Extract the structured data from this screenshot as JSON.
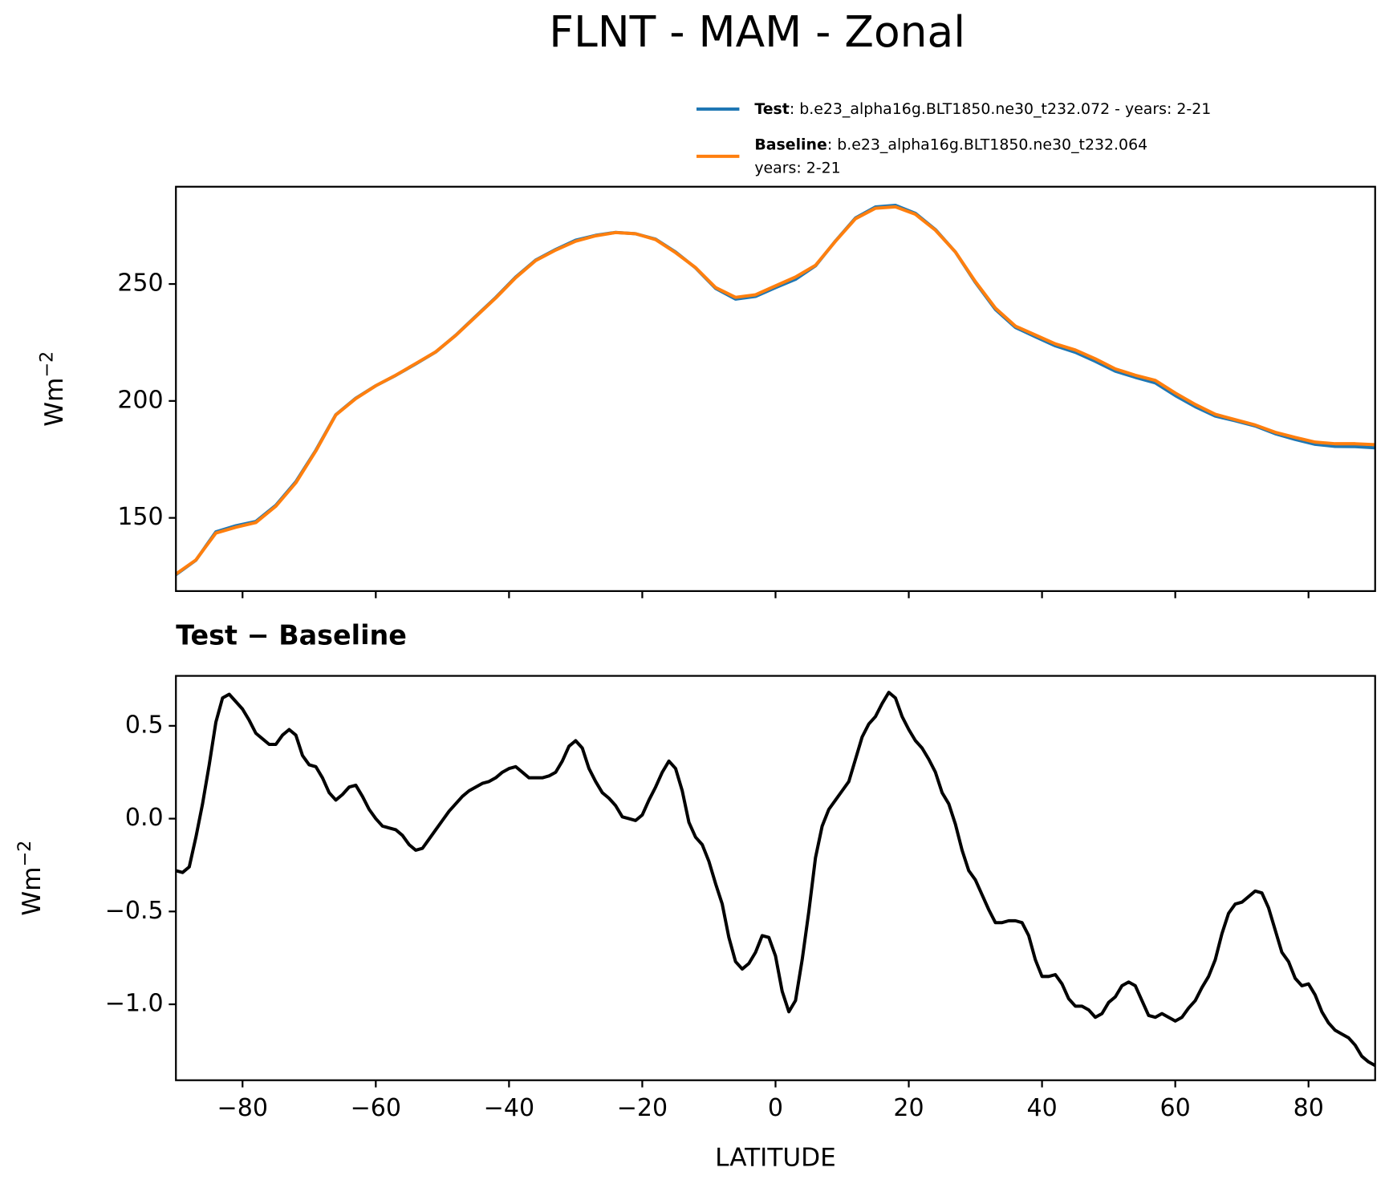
{
  "title": "FLNT - MAM - Zonal",
  "chart_data": [
    {
      "type": "line",
      "legend": "upper right",
      "ylabel": "Wm",
      "ylabel_superscript": "−2",
      "x": [
        -90,
        -87,
        -84,
        -81,
        -78,
        -75,
        -72,
        -69,
        -66,
        -63,
        -60,
        -57,
        -54,
        -51,
        -48,
        -45,
        -42,
        -39,
        -36,
        -33,
        -30,
        -27,
        -24,
        -21,
        -18,
        -15,
        -12,
        -9,
        -6,
        -3,
        0,
        3,
        6,
        9,
        12,
        15,
        18,
        21,
        24,
        27,
        30,
        33,
        36,
        39,
        42,
        45,
        48,
        51,
        54,
        57,
        60,
        63,
        66,
        69,
        72,
        75,
        78,
        81,
        84,
        87,
        90
      ],
      "series": [
        {
          "name": "Test",
          "description": [
            ": b.e23_alpha16g.BLT1850.ne30_t232.072 - years: 2-21"
          ],
          "color": "#1f77b4",
          "values": [
            125.72,
            131.9,
            144.02,
            146.63,
            148.46,
            155.4,
            165.45,
            178.88,
            194.1,
            201.18,
            206.5,
            210.94,
            215.83,
            220.94,
            228.08,
            236.17,
            244.22,
            252.98,
            260.22,
            264.75,
            268.72,
            270.8,
            272.07,
            271.49,
            269.17,
            263.67,
            256.9,
            248.15,
            243.53,
            244.68,
            248.46,
            252.02,
            257.79,
            268.4,
            278.22,
            282.95,
            283.65,
            280.22,
            273.25,
            263.67,
            250.67,
            239.14,
            231.45,
            227.44,
            223.56,
            220.79,
            216.93,
            212.74,
            210.1,
            207.73,
            202.31,
            197.52,
            193.54,
            191.54,
            189.31,
            186.0,
            183.54,
            181.45,
            180.56,
            180.48,
            179.97
          ]
        },
        {
          "name": "Baseline",
          "description": [
            ": b.e23_alpha16g.BLT1850.ne30_t232.064",
            "years: 2-21"
          ],
          "color": "#ff7f0e",
          "values": [
            126,
            132,
            143.5,
            146,
            148,
            155,
            165,
            178.6,
            194,
            201,
            206.5,
            211,
            216,
            221,
            228,
            236,
            244,
            252.7,
            260,
            264.5,
            268.3,
            270.6,
            272,
            271.5,
            269,
            263.4,
            257,
            248.5,
            244.3,
            245.4,
            249.2,
            253,
            258,
            268.3,
            277.9,
            282.4,
            283,
            279.8,
            273,
            263.7,
            251,
            239.7,
            232,
            228.2,
            224.4,
            221.8,
            218,
            213.7,
            211,
            208.8,
            203.4,
            198.5,
            194.3,
            192,
            189.7,
            186.6,
            184.4,
            182.4,
            181.7,
            181.7,
            181.3
          ]
        }
      ],
      "xlim": [
        -90,
        90
      ],
      "xticks": [
        -80,
        -60,
        -40,
        -20,
        0,
        20,
        40,
        60,
        80
      ],
      "xticklabels": false,
      "ylim": [
        118.7,
        291.6
      ],
      "yticks": [
        150,
        200,
        250
      ],
      "grid": false
    },
    {
      "type": "line",
      "title": "Test − Baseline",
      "xlabel": "LATITUDE",
      "ylabel": "Wm",
      "ylabel_superscript": "−2",
      "x": [
        -90,
        -89,
        -88,
        -87,
        -86,
        -85,
        -84,
        -83,
        -82,
        -81,
        -80,
        -79,
        -78,
        -77,
        -76,
        -75,
        -74,
        -73,
        -72,
        -71,
        -70,
        -69,
        -68,
        -67,
        -66,
        -65,
        -64,
        -63,
        -62,
        -61,
        -60,
        -59,
        -58,
        -57,
        -56,
        -55,
        -54,
        -53,
        -52,
        -51,
        -50,
        -49,
        -48,
        -47,
        -46,
        -45,
        -44,
        -43,
        -42,
        -41,
        -40,
        -39,
        -38,
        -37,
        -36,
        -35,
        -34,
        -33,
        -32,
        -31,
        -30,
        -29,
        -28,
        -27,
        -26,
        -25,
        -24,
        -23,
        -22,
        -21,
        -20,
        -19,
        -18,
        -17,
        -16,
        -15,
        -14,
        -13,
        -12,
        -11,
        -10,
        -9,
        -8,
        -7,
        -6,
        -5,
        -4,
        -3,
        -2,
        -1,
        0,
        1,
        2,
        3,
        4,
        5,
        6,
        7,
        8,
        9,
        10,
        11,
        12,
        13,
        14,
        15,
        16,
        17,
        18,
        19,
        20,
        21,
        22,
        23,
        24,
        25,
        26,
        27,
        28,
        29,
        30,
        31,
        32,
        33,
        34,
        35,
        36,
        37,
        38,
        39,
        40,
        41,
        42,
        43,
        44,
        45,
        46,
        47,
        48,
        49,
        50,
        51,
        52,
        53,
        54,
        55,
        56,
        57,
        58,
        59,
        60,
        61,
        62,
        63,
        64,
        65,
        66,
        67,
        68,
        69,
        70,
        71,
        72,
        73,
        74,
        75,
        76,
        77,
        78,
        79,
        80,
        81,
        82,
        83,
        84,
        85,
        86,
        87,
        88,
        89,
        90
      ],
      "series": [
        {
          "color": "#000000",
          "values": [
            -0.28,
            -0.29,
            -0.26,
            -0.1,
            0.08,
            0.29,
            0.52,
            0.65,
            0.67,
            0.63,
            0.59,
            0.53,
            0.46,
            0.43,
            0.4,
            0.4,
            0.45,
            0.48,
            0.45,
            0.34,
            0.29,
            0.28,
            0.22,
            0.14,
            0.1,
            0.13,
            0.17,
            0.18,
            0.12,
            0.05,
            0.0,
            -0.04,
            -0.05,
            -0.06,
            -0.09,
            -0.14,
            -0.17,
            -0.16,
            -0.11,
            -0.06,
            -0.01,
            0.04,
            0.08,
            0.12,
            0.15,
            0.17,
            0.19,
            0.2,
            0.22,
            0.25,
            0.27,
            0.28,
            0.25,
            0.22,
            0.22,
            0.22,
            0.23,
            0.25,
            0.31,
            0.39,
            0.42,
            0.38,
            0.27,
            0.2,
            0.14,
            0.11,
            0.07,
            0.01,
            0.0,
            -0.01,
            0.02,
            0.1,
            0.17,
            0.25,
            0.31,
            0.27,
            0.15,
            -0.02,
            -0.1,
            -0.14,
            -0.23,
            -0.35,
            -0.46,
            -0.64,
            -0.77,
            -0.81,
            -0.78,
            -0.72,
            -0.63,
            -0.64,
            -0.74,
            -0.93,
            -1.04,
            -0.98,
            -0.76,
            -0.5,
            -0.21,
            -0.04,
            0.05,
            0.1,
            0.15,
            0.2,
            0.32,
            0.44,
            0.51,
            0.55,
            0.62,
            0.68,
            0.65,
            0.55,
            0.48,
            0.42,
            0.38,
            0.32,
            0.25,
            0.14,
            0.08,
            -0.03,
            -0.17,
            -0.28,
            -0.33,
            -0.41,
            -0.49,
            -0.56,
            -0.56,
            -0.55,
            -0.55,
            -0.56,
            -0.63,
            -0.76,
            -0.85,
            -0.85,
            -0.84,
            -0.89,
            -0.97,
            -1.01,
            -1.01,
            -1.03,
            -1.07,
            -1.05,
            -0.99,
            -0.96,
            -0.9,
            -0.88,
            -0.9,
            -0.98,
            -1.06,
            -1.07,
            -1.05,
            -1.07,
            -1.09,
            -1.07,
            -1.02,
            -0.98,
            -0.91,
            -0.85,
            -0.76,
            -0.62,
            -0.51,
            -0.46,
            -0.45,
            -0.42,
            -0.39,
            -0.4,
            -0.48,
            -0.6,
            -0.72,
            -0.77,
            -0.86,
            -0.9,
            -0.89,
            -0.95,
            -1.04,
            -1.1,
            -1.14,
            -1.16,
            -1.18,
            -1.22,
            -1.28,
            -1.31,
            -1.33
          ]
        }
      ],
      "xlim": [
        -90,
        90
      ],
      "xticks": [
        {
          "value": -80,
          "label": "−80"
        },
        {
          "value": -60,
          "label": "−60"
        },
        {
          "value": -40,
          "label": "−40"
        },
        {
          "value": -20,
          "label": "−20"
        },
        0,
        20,
        40,
        60,
        80
      ],
      "ylim": [
        -1.409,
        0.769
      ],
      "yticks": [
        {
          "value": -1.0,
          "label": "−1.0"
        },
        {
          "value": -0.5,
          "label": "−0.5"
        },
        {
          "value": 0,
          "label": "0.0"
        },
        0.5
      ],
      "grid": false
    }
  ]
}
